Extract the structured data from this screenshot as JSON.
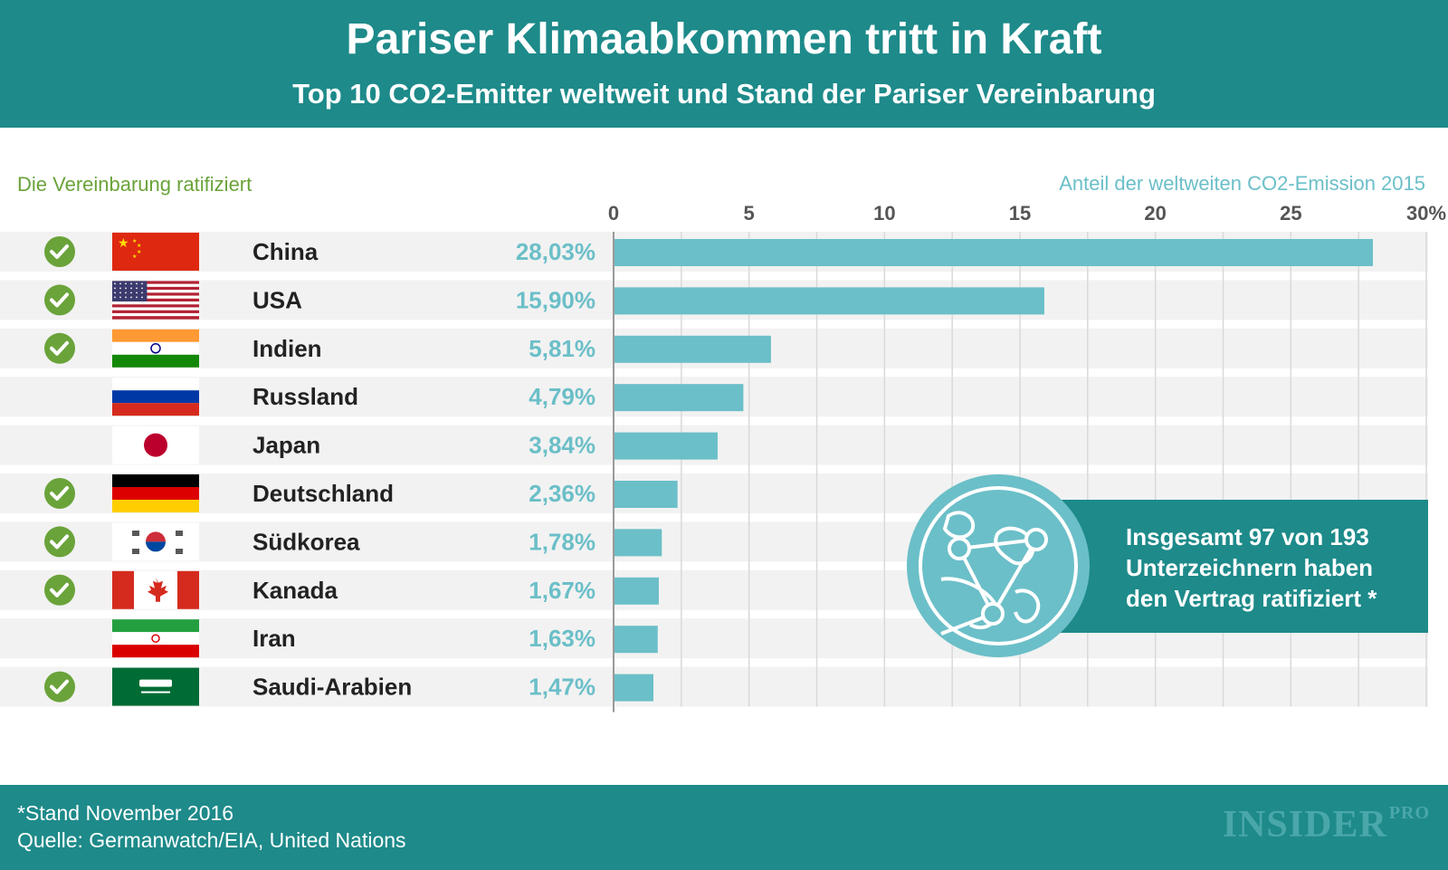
{
  "header": {
    "title": "Pariser Klimaabkommen tritt in Kraft",
    "subtitle": "Top 10 CO2-Emitter weltweit und Stand der Pariser Vereinbarung"
  },
  "legend_left": "Die Vereinbarung ratifiziert",
  "colors": {
    "header_bg": "#1e8a8a",
    "bar": "#6bbfc8",
    "check": "#6aa33a",
    "row_bg": "#f2f2f2",
    "value_text": "#6bbfc8"
  },
  "chart_data": {
    "type": "bar",
    "orientation": "horizontal",
    "title": "Anteil der weltweiten CO2-Emission 2015",
    "categories": [
      "China",
      "USA",
      "Indien",
      "Russland",
      "Japan",
      "Deutschland",
      "Südkorea",
      "Kanada",
      "Iran",
      "Saudi-Arabien"
    ],
    "values": [
      28.03,
      15.9,
      5.81,
      4.79,
      3.84,
      2.36,
      1.78,
      1.67,
      1.63,
      1.47
    ],
    "value_labels": [
      "28,03%",
      "15,90%",
      "5,81%",
      "4,79%",
      "3,84%",
      "2,36%",
      "1,78%",
      "1,67%",
      "1,63%",
      "1,47%"
    ],
    "ratified": [
      true,
      true,
      true,
      false,
      false,
      true,
      true,
      true,
      false,
      true
    ],
    "flags": [
      "china-flag",
      "usa-flag",
      "india-flag",
      "russia-flag",
      "japan-flag",
      "germany-flag",
      "south-korea-flag",
      "canada-flag",
      "iran-flag",
      "saudi-arabia-flag"
    ],
    "xlim": [
      0,
      30
    ],
    "ticks": [
      0,
      5,
      10,
      15,
      20,
      25,
      30
    ],
    "tick_labels": [
      "0",
      "5",
      "10",
      "15",
      "20",
      "25",
      "30%"
    ],
    "grid": true
  },
  "callout": {
    "line1": "Insgesamt 97 von 193",
    "line2": "Unterzeichnern haben",
    "line3": "den Vertrag ratifiziert *",
    "icon": "globe-network-icon"
  },
  "footer": {
    "note": "*Stand November 2016",
    "source": "Quelle: Germanwatch/EIA, United Nations",
    "logo": "INSIDER",
    "logo_suffix": "PRO"
  }
}
